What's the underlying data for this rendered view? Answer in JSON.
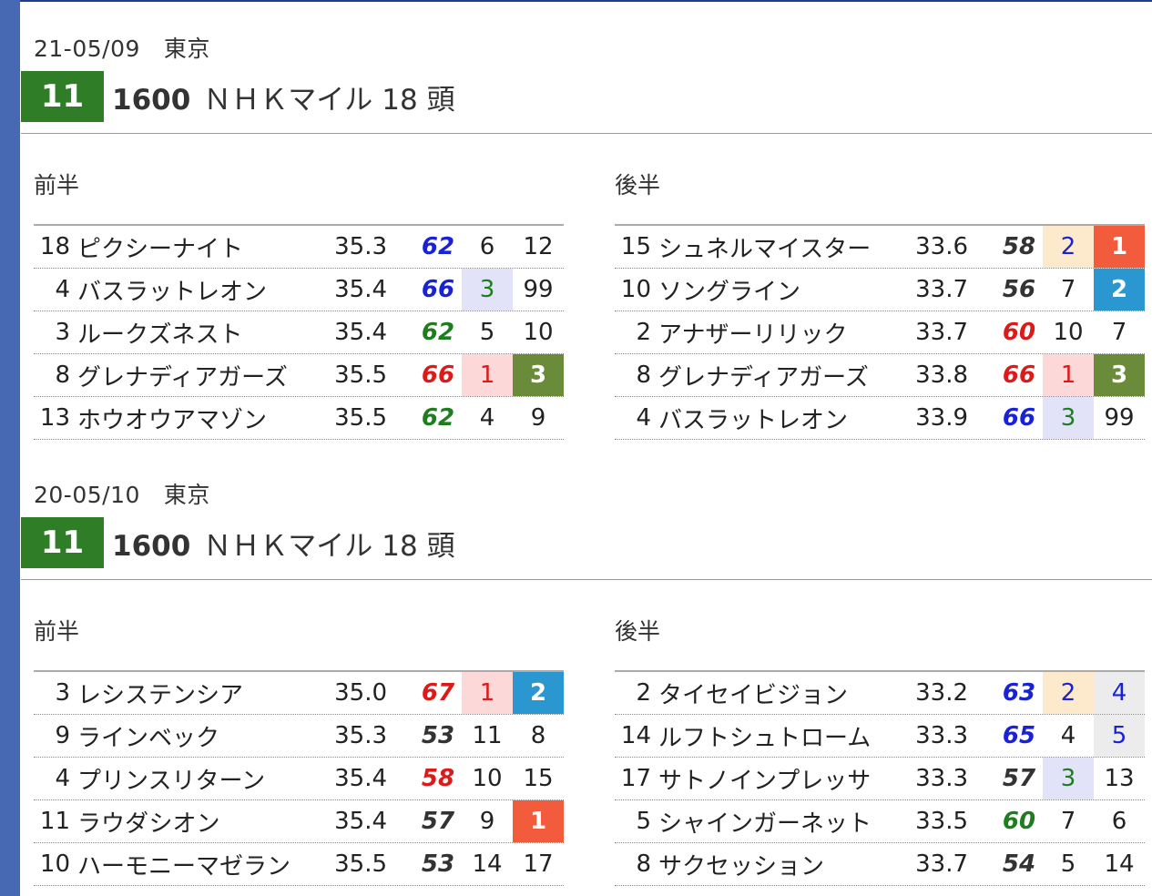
{
  "colors": {
    "sidebar": "#4768b3",
    "race_badge": "#2f7d27"
  },
  "races": [
    {
      "date": "21-05/09",
      "venue": "東京",
      "race_no": "11",
      "distance": "1600",
      "name": "ＮＨＫマイル",
      "runners": "18 頭",
      "halves": [
        {
          "label": "前半",
          "rows": [
            {
              "num": "18",
              "name": "ピクシーナイト",
              "time": "35.3",
              "idx": "62",
              "r1": "6",
              "r2": "12",
              "idx_color": "blue",
              "r1_style": "",
              "r1_color": "",
              "r2_style": "",
              "r2_color": ""
            },
            {
              "num": "4",
              "name": "バスラットレオン",
              "time": "35.4",
              "idx": "66",
              "r1": "3",
              "r2": "99",
              "idx_color": "blue",
              "r1_style": "lav",
              "r1_color": "green",
              "r2_style": "",
              "r2_color": ""
            },
            {
              "num": "3",
              "name": "ルークズネスト",
              "time": "35.4",
              "idx": "62",
              "r1": "5",
              "r2": "10",
              "idx_color": "green",
              "r1_style": "",
              "r1_color": "",
              "r2_style": "",
              "r2_color": ""
            },
            {
              "num": "8",
              "name": "グレナディアガーズ",
              "time": "35.5",
              "idx": "66",
              "r1": "1",
              "r2": "3",
              "idx_color": "red",
              "r1_style": "pink",
              "r1_color": "red",
              "r2_style": "olive",
              "r2_color": ""
            },
            {
              "num": "13",
              "name": "ホウオウアマゾン",
              "time": "35.5",
              "idx": "62",
              "r1": "4",
              "r2": "9",
              "idx_color": "green",
              "r1_style": "",
              "r1_color": "",
              "r2_style": "",
              "r2_color": ""
            }
          ]
        },
        {
          "label": "後半",
          "rows": [
            {
              "num": "15",
              "name": "シュネルマイスター",
              "time": "33.6",
              "idx": "58",
              "r1": "2",
              "r2": "1",
              "idx_color": "black",
              "r1_style": "yellow",
              "r1_color": "blue",
              "r2_style": "red",
              "r2_color": ""
            },
            {
              "num": "10",
              "name": "ソングライン",
              "time": "33.7",
              "idx": "56",
              "r1": "7",
              "r2": "2",
              "idx_color": "black",
              "r1_style": "",
              "r1_color": "",
              "r2_style": "blue",
              "r2_color": ""
            },
            {
              "num": "2",
              "name": "アナザーリリック",
              "time": "33.7",
              "idx": "60",
              "r1": "10",
              "r2": "7",
              "idx_color": "red",
              "r1_style": "",
              "r1_color": "",
              "r2_style": "",
              "r2_color": ""
            },
            {
              "num": "8",
              "name": "グレナディアガーズ",
              "time": "33.8",
              "idx": "66",
              "r1": "1",
              "r2": "3",
              "idx_color": "red",
              "r1_style": "pink",
              "r1_color": "red",
              "r2_style": "olive",
              "r2_color": ""
            },
            {
              "num": "4",
              "name": "バスラットレオン",
              "time": "33.9",
              "idx": "66",
              "r1": "3",
              "r2": "99",
              "idx_color": "blue",
              "r1_style": "lav",
              "r1_color": "green",
              "r2_style": "",
              "r2_color": ""
            }
          ]
        }
      ]
    },
    {
      "date": "20-05/10",
      "venue": "東京",
      "race_no": "11",
      "distance": "1600",
      "name": "ＮＨＫマイル",
      "runners": "18 頭",
      "halves": [
        {
          "label": "前半",
          "rows": [
            {
              "num": "3",
              "name": "レシステンシア",
              "time": "35.0",
              "idx": "67",
              "r1": "1",
              "r2": "2",
              "idx_color": "red",
              "r1_style": "pink",
              "r1_color": "red",
              "r2_style": "blue",
              "r2_color": ""
            },
            {
              "num": "9",
              "name": "ラインベック",
              "time": "35.3",
              "idx": "53",
              "r1": "11",
              "r2": "8",
              "idx_color": "black",
              "r1_style": "",
              "r1_color": "",
              "r2_style": "",
              "r2_color": ""
            },
            {
              "num": "4",
              "name": "プリンスリターン",
              "time": "35.4",
              "idx": "58",
              "r1": "10",
              "r2": "15",
              "idx_color": "red",
              "r1_style": "",
              "r1_color": "",
              "r2_style": "",
              "r2_color": ""
            },
            {
              "num": "11",
              "name": "ラウダシオン",
              "time": "35.4",
              "idx": "57",
              "r1": "9",
              "r2": "1",
              "idx_color": "black",
              "r1_style": "",
              "r1_color": "",
              "r2_style": "red",
              "r2_color": ""
            },
            {
              "num": "10",
              "name": "ハーモニーマゼラン",
              "time": "35.5",
              "idx": "53",
              "r1": "14",
              "r2": "17",
              "idx_color": "black",
              "r1_style": "",
              "r1_color": "",
              "r2_style": "",
              "r2_color": ""
            }
          ]
        },
        {
          "label": "後半",
          "rows": [
            {
              "num": "2",
              "name": "タイセイビジョン",
              "time": "33.2",
              "idx": "63",
              "r1": "2",
              "r2": "4",
              "idx_color": "blue",
              "r1_style": "yellow",
              "r1_color": "blue",
              "r2_style": "gray",
              "r2_color": "blue"
            },
            {
              "num": "14",
              "name": "ルフトシュトローム",
              "time": "33.3",
              "idx": "65",
              "r1": "4",
              "r2": "5",
              "idx_color": "blue",
              "r1_style": "",
              "r1_color": "",
              "r2_style": "gray",
              "r2_color": "blue"
            },
            {
              "num": "17",
              "name": "サトノインプレッサ",
              "time": "33.3",
              "idx": "57",
              "r1": "3",
              "r2": "13",
              "idx_color": "black",
              "r1_style": "lav",
              "r1_color": "green",
              "r2_style": "",
              "r2_color": ""
            },
            {
              "num": "5",
              "name": "シャインガーネット",
              "time": "33.5",
              "idx": "60",
              "r1": "7",
              "r2": "6",
              "idx_color": "green",
              "r1_style": "",
              "r1_color": "",
              "r2_style": "",
              "r2_color": ""
            },
            {
              "num": "8",
              "name": "サクセッション",
              "time": "33.7",
              "idx": "54",
              "r1": "5",
              "r2": "14",
              "idx_color": "black",
              "r1_style": "",
              "r1_color": "",
              "r2_style": "",
              "r2_color": ""
            }
          ]
        }
      ]
    }
  ]
}
